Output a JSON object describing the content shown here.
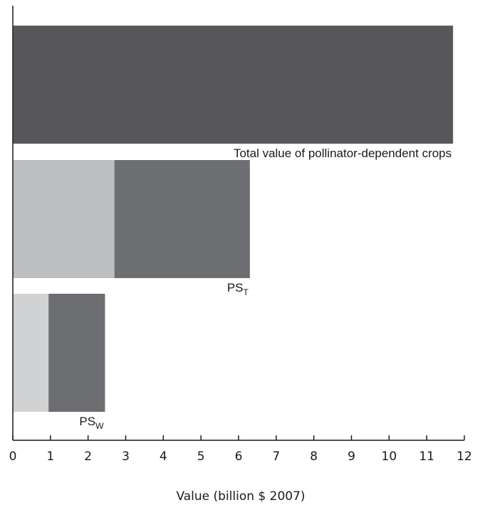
{
  "chart_data": {
    "type": "bar",
    "orientation": "horizontal",
    "stacked": true,
    "xlabel": "Value (billion $ 2007)",
    "xlim": [
      0,
      12
    ],
    "xticks": [
      0,
      1,
      2,
      3,
      4,
      5,
      6,
      7,
      8,
      9,
      10,
      11,
      12
    ],
    "grid": false,
    "bars": [
      {
        "label": "Total value of pollinator-dependent crops",
        "label_main": "Total value of pollinator-dependent crops",
        "label_sub": "",
        "segments": [
          {
            "value": 11.7,
            "color": "#58585b"
          }
        ]
      },
      {
        "label": "PS_T",
        "label_main": "PS",
        "label_sub": "T",
        "segments": [
          {
            "value": 2.7,
            "color": "#bdbec0"
          },
          {
            "value": 3.6,
            "color": "#6d6e71"
          }
        ]
      },
      {
        "label": "PS_W",
        "label_main": "PS",
        "label_sub": "W",
        "segments": [
          {
            "value": 0.95,
            "color": "#d1d2d4"
          },
          {
            "value": 1.5,
            "color": "#6d6e71"
          }
        ]
      }
    ]
  }
}
